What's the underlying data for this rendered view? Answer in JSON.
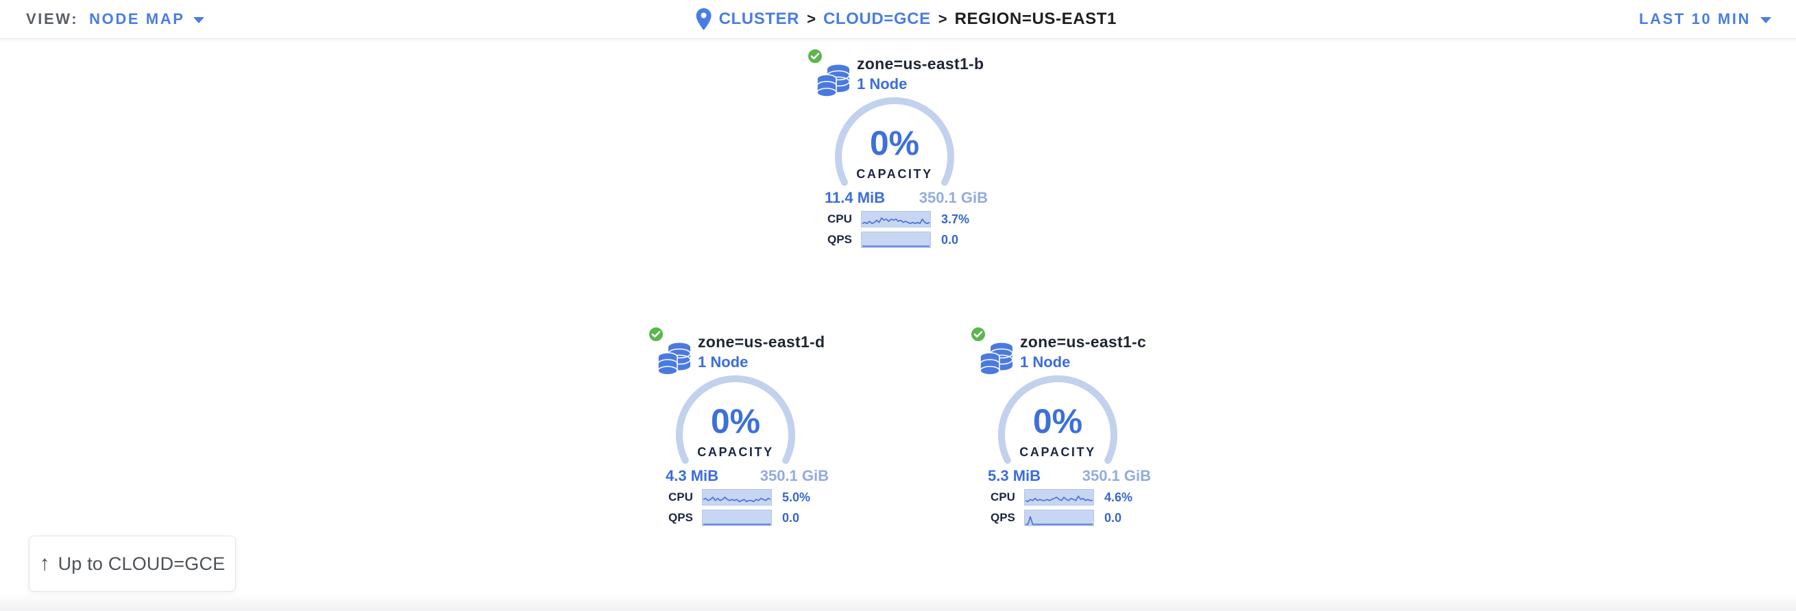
{
  "topbar": {
    "view_label": "VIEW:",
    "view_value": "NODE MAP",
    "time_range": "LAST 10 MIN"
  },
  "breadcrumb": {
    "separator": ">",
    "items": [
      {
        "label": "CLUSTER"
      },
      {
        "label": "CLOUD=GCE"
      },
      {
        "label": "REGION=US-EAST1"
      }
    ]
  },
  "nodes": [
    {
      "title": "zone=us-east1-b",
      "subtitle": "1 Node",
      "status": "healthy",
      "capacity_pct": "0%",
      "capacity_label": "CAPACITY",
      "used": "11.4 MiB",
      "total": "350.1 GiB",
      "cpu_label": "CPU",
      "cpu_value": "3.7%",
      "qps_label": "QPS",
      "qps_value": "0.0",
      "cpu_sparkline": [
        2,
        3,
        2,
        4,
        2,
        3,
        5,
        3,
        7,
        5,
        6,
        4,
        6,
        5,
        6,
        4,
        5,
        3,
        4,
        3,
        2,
        3,
        2,
        3,
        2,
        6,
        3,
        2,
        3
      ],
      "qps_sparkline": [
        0,
        0,
        0,
        0,
        0,
        0,
        0,
        0,
        0,
        0,
        0,
        0,
        0,
        0,
        0,
        0,
        0,
        0,
        0,
        0,
        0,
        0,
        0,
        0,
        0,
        0,
        0,
        0,
        0
      ]
    },
    {
      "title": "zone=us-east1-d",
      "subtitle": "1 Node",
      "status": "healthy",
      "capacity_pct": "0%",
      "capacity_label": "CAPACITY",
      "used": "4.3 MiB",
      "total": "350.1 GiB",
      "cpu_label": "CPU",
      "cpu_value": "5.0%",
      "qps_label": "QPS",
      "qps_value": "0.0",
      "cpu_sparkline": [
        4,
        5,
        3,
        4,
        6,
        3,
        5,
        3,
        4,
        6,
        4,
        3,
        4,
        3,
        4,
        2,
        3,
        4,
        2,
        3,
        3,
        2,
        4,
        3,
        5,
        4,
        3,
        5,
        4
      ],
      "qps_sparkline": [
        0,
        0,
        0,
        0,
        0,
        0,
        0,
        0,
        0,
        0,
        0,
        0,
        0,
        0,
        0,
        0,
        0,
        0,
        0,
        0,
        0,
        0,
        0,
        0,
        0,
        0,
        0,
        0,
        0
      ]
    },
    {
      "title": "zone=us-east1-c",
      "subtitle": "1 Node",
      "status": "healthy",
      "capacity_pct": "0%",
      "capacity_label": "CAPACITY",
      "used": "5.3 MiB",
      "total": "350.1 GiB",
      "cpu_label": "CPU",
      "cpu_value": "4.6%",
      "qps_label": "QPS",
      "qps_value": "0.0",
      "cpu_sparkline": [
        3,
        2,
        4,
        3,
        5,
        3,
        4,
        3,
        3,
        4,
        3,
        4,
        5,
        6,
        4,
        3,
        6,
        4,
        3,
        5,
        4,
        3,
        7,
        4,
        5,
        3,
        4,
        3,
        3
      ],
      "qps_sparkline": [
        0,
        0,
        7,
        0,
        0,
        0,
        0,
        0,
        0,
        0,
        0,
        0,
        0,
        0,
        0,
        0,
        0,
        0,
        0,
        0,
        0,
        0,
        0,
        0,
        0,
        0,
        0,
        0,
        0
      ]
    }
  ],
  "up_button": {
    "label": "Up to CLOUD=GCE",
    "arrow": "↑"
  },
  "icons": {
    "location_pin": "location-pin-icon",
    "healthy_check": "healthy-check-icon",
    "database_stack": "database-stack-icon",
    "dropdown_caret": "dropdown-caret-icon",
    "up_arrow": "up-arrow-icon"
  },
  "colors": {
    "accent_blue": "#4a7de3",
    "value_blue": "#3b6ddb",
    "gauge_arc": "#c2d1ee",
    "sparkline_fill": "#c7d6f2",
    "sparkline_line": "#4a72d8",
    "total_blue": "#93abdf",
    "dark_text": "#1b2540",
    "healthy_green": "#5cb64a"
  }
}
